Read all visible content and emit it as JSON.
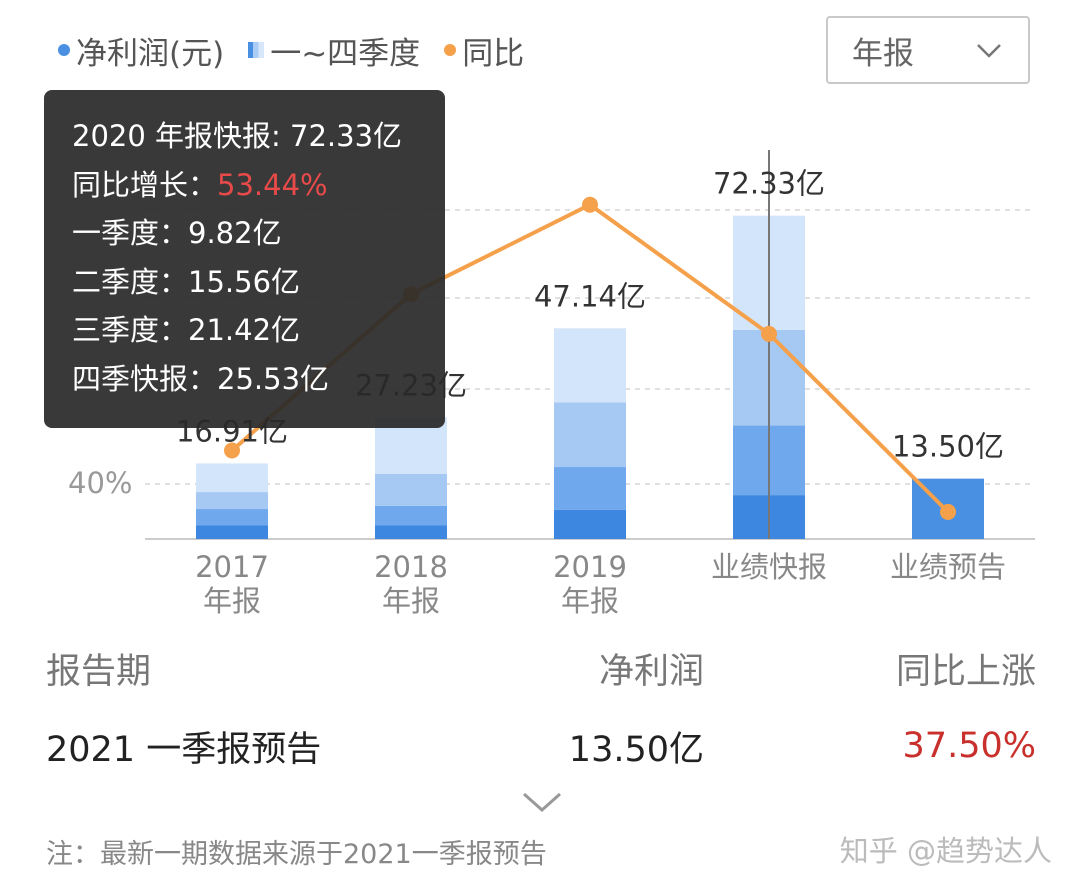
{
  "legend": {
    "items": [
      {
        "label": "净利润(元)",
        "marker": "dot",
        "color": "#4a90e2"
      },
      {
        "label": "一~四季度",
        "marker": "gradient-square",
        "color": "#a9cdf5"
      },
      {
        "label": "同比",
        "marker": "dot",
        "color": "#f5a04a"
      }
    ]
  },
  "period_selector": {
    "value": "年报",
    "icon": "chevron-down-icon"
  },
  "tooltip": {
    "title": "2020 年报快报: 72.33亿",
    "growth_label": "同比增长：",
    "growth_value": "53.44%",
    "q1": "一季度：9.82亿",
    "q2": "二季度：15.56亿",
    "q3": "三季度：21.42亿",
    "q4": "四季快报：25.53亿"
  },
  "chart_data": {
    "type": "bar",
    "categories": [
      "2017 年报",
      "2018 年报",
      "2019 年报",
      "业绩快报",
      "业绩预告"
    ],
    "category_lines": [
      [
        "2017",
        "年报"
      ],
      [
        "2018",
        "年报"
      ],
      [
        "2019",
        "年报"
      ],
      [
        "业绩快报"
      ],
      [
        "业绩预告"
      ]
    ],
    "net_profit_labels": [
      "16.91亿",
      "27.23亿",
      "47.14亿",
      "72.33亿",
      "13.50亿"
    ],
    "net_profit": [
      16.91,
      27.23,
      47.14,
      72.33,
      13.5
    ],
    "quarters": [
      [
        3.1,
        3.6,
        3.8,
        6.41
      ],
      [
        3.1,
        4.3,
        7.2,
        12.63
      ],
      [
        6.5,
        9.6,
        14.5,
        16.54
      ],
      [
        9.82,
        15.56,
        21.42,
        25.53
      ],
      [
        13.5
      ]
    ],
    "quarter_colors": [
      "#3d87e0",
      "#6fa8ec",
      "#a6c9f3",
      "#d3e5fa"
    ],
    "yoy_growth": [
      43,
      57,
      65,
      53.44,
      37.5
    ],
    "yoy_color": "#f5a04a",
    "y_tick_label": "40%",
    "grid": true,
    "highlighted_category": "业绩快报"
  },
  "table": {
    "headers": [
      "报告期",
      "净利润",
      "同比上涨"
    ],
    "rows": [
      {
        "period": "2021 一季报预告",
        "profit": "13.50亿",
        "yoy": "37.50%"
      }
    ]
  },
  "note": "注：最新一期数据来源于2021一季报预告",
  "watermark": "知乎 @趋势达人"
}
